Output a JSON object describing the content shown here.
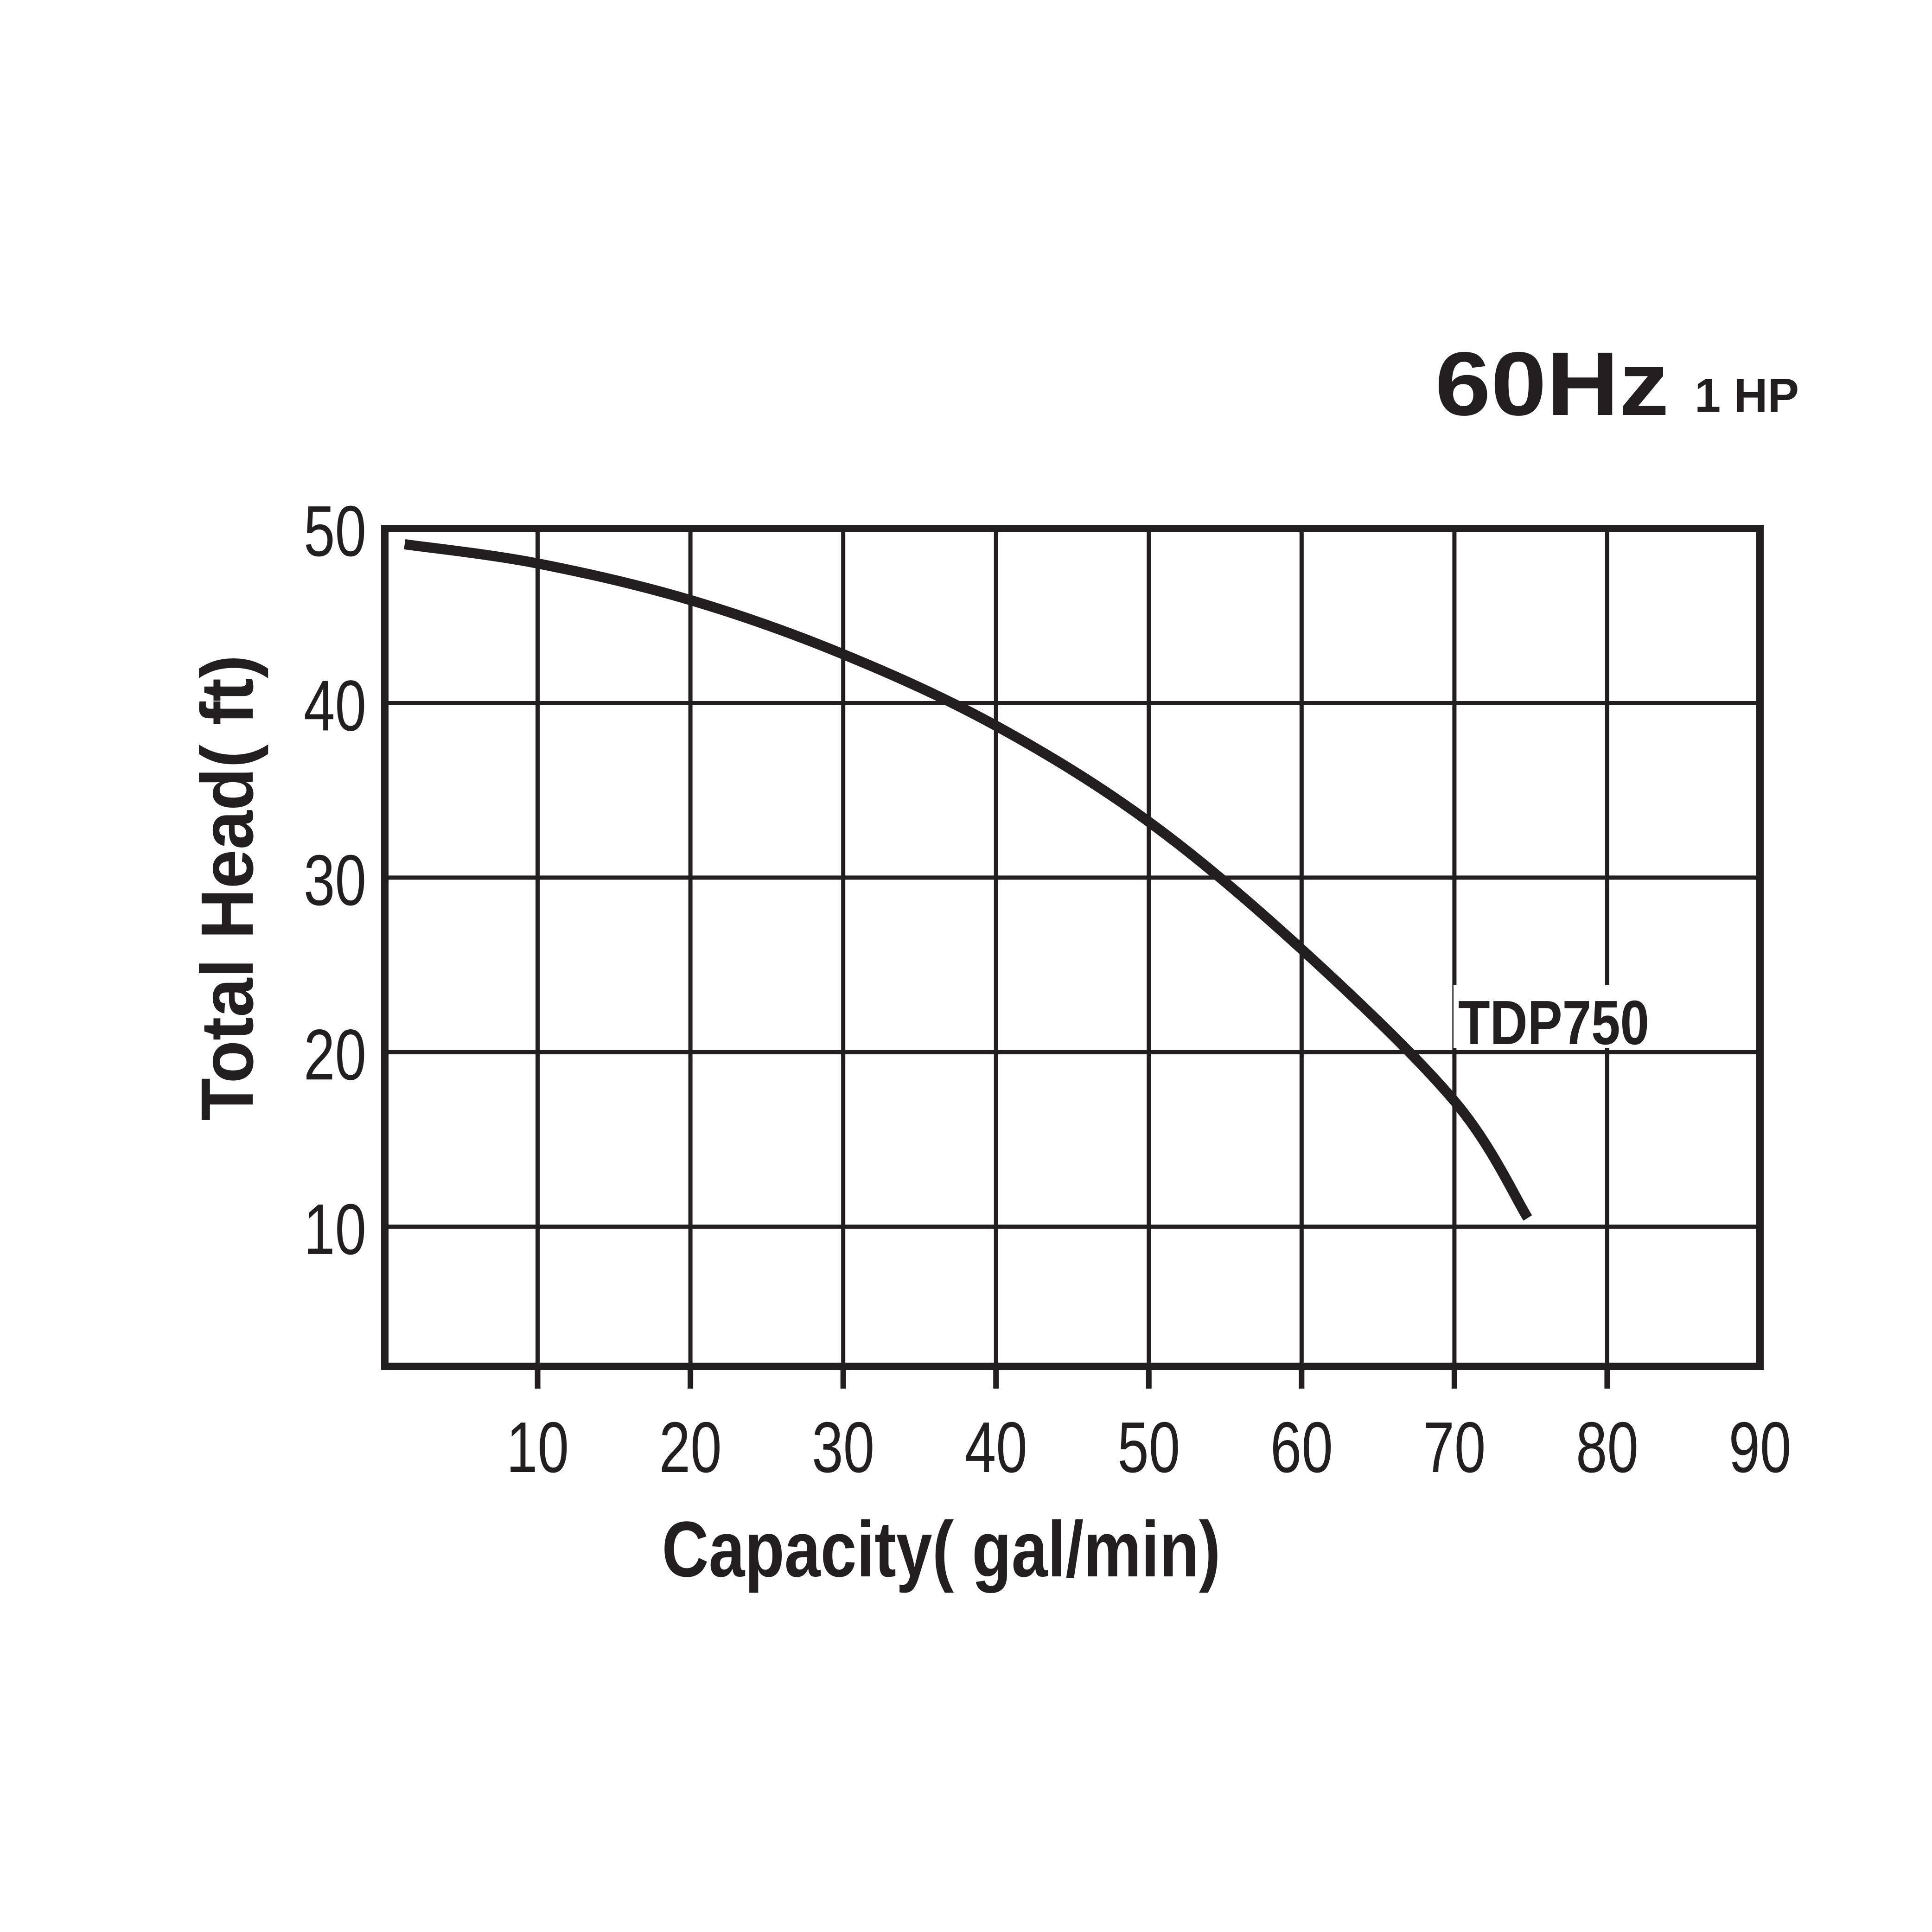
{
  "header": {
    "frequency": "60Hz",
    "power": "1 HP"
  },
  "chart_data": {
    "type": "line",
    "title": "60Hz 1 HP",
    "xlabel": "Capacity( gal/min)",
    "ylabel": "Total Head( ft)",
    "x_unit": "gal/min",
    "y_unit": "ft",
    "xlim": [
      0,
      90
    ],
    "ylim": [
      2,
      50
    ],
    "x_ticks": [
      10,
      20,
      30,
      40,
      50,
      60,
      70,
      80,
      90
    ],
    "y_ticks": [
      10,
      20,
      30,
      40,
      50
    ],
    "grid": true,
    "legend_position": "inside-right",
    "line_color": "#231f20",
    "series": [
      {
        "name": "TDP750",
        "points": [
          [
            1.3,
            49.1
          ],
          [
            10,
            48.0
          ],
          [
            20,
            45.9
          ],
          [
            30,
            42.8
          ],
          [
            40,
            38.7
          ],
          [
            50,
            33.2
          ],
          [
            60,
            25.9
          ],
          [
            70,
            17.2
          ],
          [
            74.8,
            10.5
          ]
        ]
      }
    ]
  }
}
